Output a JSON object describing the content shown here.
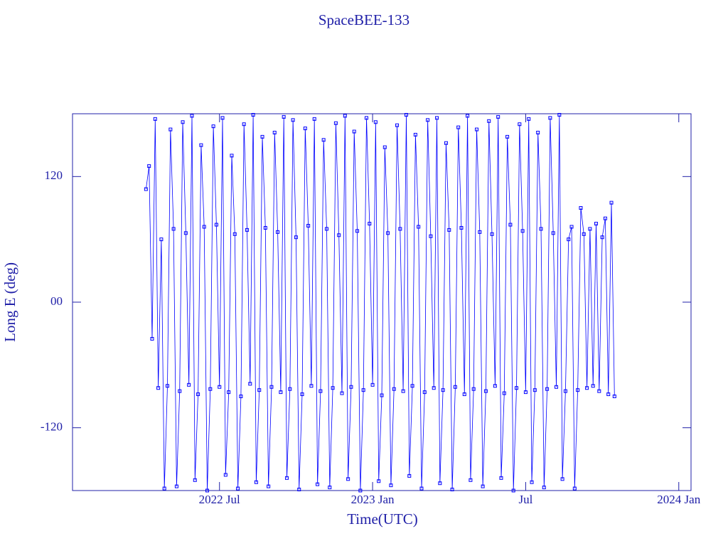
{
  "chart_data": {
    "type": "line",
    "title": "SpaceBEE-133",
    "x_label": "Time(UTC)",
    "y_label": "Long E (deg)",
    "xlim": [
      2022.02,
      2024.04
    ],
    "xticks": [
      {
        "value": 2022.5,
        "label": "2022 Jul"
      },
      {
        "value": 2023.0,
        "label": "2023 Jan"
      },
      {
        "value": 2023.5,
        "label": "Jul"
      },
      {
        "value": 2024.0,
        "label": "2024 Jan"
      }
    ],
    "ylim": [
      -180,
      180
    ],
    "yticks": [
      120,
      {
        "value": 0,
        "label": "00"
      },
      -120
    ],
    "color": "#0000ff",
    "markers": true,
    "x": [
      2022.26,
      2022.27,
      2022.28,
      2022.29,
      2022.3,
      2022.31,
      2022.32,
      2022.33,
      2022.34,
      2022.35,
      2022.36,
      2022.37,
      2022.38,
      2022.39,
      2022.4,
      2022.41,
      2022.42,
      2022.43,
      2022.44,
      2022.45,
      2022.46,
      2022.47,
      2022.48,
      2022.49,
      2022.5,
      2022.51,
      2022.52,
      2022.53,
      2022.54,
      2022.55,
      2022.56,
      2022.57,
      2022.58,
      2022.59,
      2022.6,
      2022.61,
      2022.62,
      2022.63,
      2022.64,
      2022.65,
      2022.66,
      2022.67,
      2022.68,
      2022.69,
      2022.7,
      2022.71,
      2022.72,
      2022.73,
      2022.74,
      2022.75,
      2022.76,
      2022.77,
      2022.78,
      2022.79,
      2022.8,
      2022.81,
      2022.82,
      2022.83,
      2022.84,
      2022.85,
      2022.86,
      2022.87,
      2022.88,
      2022.89,
      2022.9,
      2022.91,
      2022.92,
      2022.93,
      2022.94,
      2022.95,
      2022.96,
      2022.97,
      2022.98,
      2022.99,
      2023.0,
      2023.01,
      2023.02,
      2023.03,
      2023.04,
      2023.05,
      2023.06,
      2023.07,
      2023.08,
      2023.09,
      2023.1,
      2023.11,
      2023.12,
      2023.13,
      2023.14,
      2023.15,
      2023.16,
      2023.17,
      2023.18,
      2023.19,
      2023.2,
      2023.21,
      2023.22,
      2023.23,
      2023.24,
      2023.25,
      2023.26,
      2023.27,
      2023.28,
      2023.29,
      2023.3,
      2023.31,
      2023.32,
      2023.33,
      2023.34,
      2023.35,
      2023.36,
      2023.37,
      2023.38,
      2023.39,
      2023.4,
      2023.41,
      2023.42,
      2023.43,
      2023.44,
      2023.45,
      2023.46,
      2023.47,
      2023.48,
      2023.49,
      2023.5,
      2023.51,
      2023.52,
      2023.53,
      2023.54,
      2023.55,
      2023.56,
      2023.57,
      2023.58,
      2023.59,
      2023.6,
      2023.61,
      2023.62,
      2023.63,
      2023.64,
      2023.65,
      2023.66,
      2023.67,
      2023.68,
      2023.69,
      2023.7,
      2023.71,
      2023.72,
      2023.73,
      2023.74,
      2023.75,
      2023.76,
      2023.77,
      2023.78,
      2023.79
    ],
    "values": [
      108,
      130,
      -35,
      175,
      -82,
      60,
      -178,
      -80,
      165,
      70,
      -176,
      -85,
      172,
      66,
      -79,
      178,
      -170,
      -88,
      150,
      72,
      -180,
      -83,
      168,
      74,
      -81,
      176,
      -165,
      -86,
      140,
      65,
      -178,
      -90,
      170,
      69,
      -78,
      179,
      -172,
      -84,
      158,
      71,
      -176,
      -81,
      162,
      67,
      -86,
      177,
      -168,
      -83,
      174,
      62,
      -179,
      -88,
      166,
      73,
      -80,
      175,
      -174,
      -85,
      155,
      70,
      -177,
      -82,
      171,
      64,
      -87,
      178,
      -169,
      -81,
      163,
      68,
      -180,
      -84,
      176,
      75,
      -79,
      172,
      -171,
      -89,
      148,
      66,
      -175,
      -83,
      169,
      70,
      -85,
      179,
      -166,
      -80,
      160,
      72,
      -178,
      -86,
      174,
      63,
      -82,
      176,
      -173,
      -84,
      152,
      69,
      -179,
      -81,
      167,
      71,
      -88,
      178,
      -170,
      -83,
      165,
      67,
      -176,
      -85,
      173,
      65,
      -80,
      177,
      -168,
      -87,
      158,
      74,
      -180,
      -82,
      170,
      68,
      -86,
      175,
      -172,
      -84,
      162,
      70,
      -177,
      -83,
      176,
      66,
      -81,
      179,
      -169,
      -85,
      60,
      72,
      -178,
      -84,
      90,
      65,
      -82,
      70,
      -80,
      75,
      -85,
      62,
      80,
      -88,
      95,
      -90
    ]
  }
}
